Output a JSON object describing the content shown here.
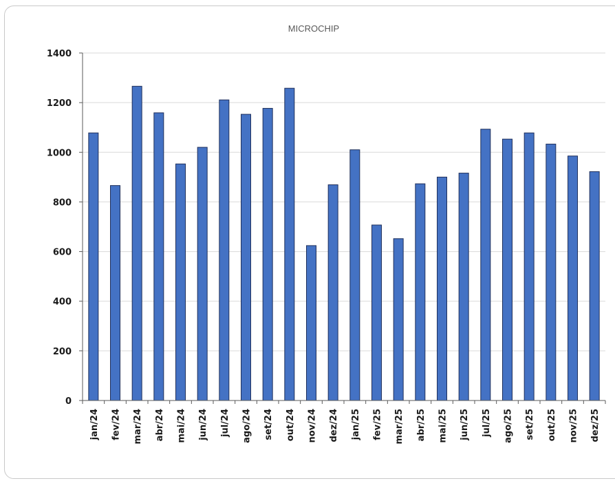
{
  "chart_data": {
    "type": "bar",
    "title": "MICROCHIP",
    "xlabel": "",
    "ylabel": "",
    "ylim": [
      0,
      1400
    ],
    "yticks": [
      0,
      200,
      400,
      600,
      800,
      1000,
      1200,
      1400
    ],
    "grid": true,
    "legend": "none",
    "categories": [
      "jan/24",
      "fev/24",
      "mar/24",
      "abr/24",
      "mai/24",
      "jun/24",
      "jul/24",
      "ago/24",
      "set/24",
      "out/24",
      "nov/24",
      "dez/24",
      "jan/25",
      "fev/25",
      "mar/25",
      "abr/25",
      "mai/25",
      "jun/25",
      "jul/25",
      "ago/25",
      "set/25",
      "out/25",
      "nov/25",
      "dez/25"
    ],
    "values": [
      1078,
      866,
      1266,
      1159,
      953,
      1020,
      1211,
      1153,
      1177,
      1258,
      624,
      869,
      1010,
      707,
      652,
      873,
      900,
      916,
      1093,
      1053,
      1078,
      1033,
      985,
      922
    ],
    "colors": {
      "bar_fill": "#4472C4",
      "bar_stroke": "#1f2f5a",
      "grid": "#d9d9d9",
      "axis": "#595959"
    }
  }
}
